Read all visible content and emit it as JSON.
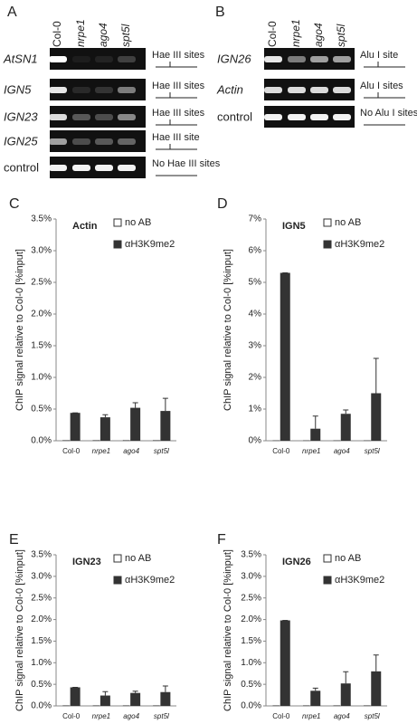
{
  "gels": [
    {
      "panel": "A",
      "lanes": [
        "Col-0",
        "nrpe1",
        "ago4",
        "spt5l"
      ],
      "rows": [
        {
          "name": "AtSN1",
          "note": "Hae III sites"
        },
        {
          "name": "IGN5",
          "note": "Hae III sites"
        },
        {
          "name": "IGN23",
          "note": "Hae III sites"
        },
        {
          "name": "IGN25",
          "note": "Hae III site"
        },
        {
          "name": "control",
          "note": "No Hae III sites"
        }
      ]
    },
    {
      "panel": "B",
      "lanes": [
        "Col-0",
        "nrpe1",
        "ago4",
        "spt5l"
      ],
      "rows": [
        {
          "name": "IGN26",
          "note": "Alu I site"
        },
        {
          "name": "Actin",
          "note": "Alu I sites"
        },
        {
          "name": "control",
          "note": "No Alu I sites"
        }
      ]
    }
  ],
  "chart_data": [
    {
      "type": "bar",
      "panel": "C",
      "title": "Actin",
      "ylabel": "ChIP signal relative to Col-0 [%input]",
      "categories": [
        "Col-0",
        "nrpe1",
        "ago4",
        "spt5l"
      ],
      "series": [
        {
          "name": "no AB",
          "color": "#ffffff",
          "values": [
            0.01,
            0.01,
            0.01,
            0.01
          ]
        },
        {
          "name": "αH3K9me2",
          "color": "#333333",
          "values": [
            0.44,
            0.37,
            0.52,
            0.47
          ],
          "errors": [
            0,
            0.04,
            0.08,
            0.2
          ]
        }
      ],
      "ylim": [
        0,
        3.5
      ],
      "yticks": [
        {
          "value": 0,
          "label": "0.0%"
        },
        {
          "value": 0.5,
          "label": "0.5%"
        },
        {
          "value": 1,
          "label": "1.0%"
        },
        {
          "value": 1.5,
          "label": "1.5%"
        },
        {
          "value": 2,
          "label": "2.0%"
        },
        {
          "value": 2.5,
          "label": "2.5%"
        },
        {
          "value": 3,
          "label": "3.0%"
        },
        {
          "value": 3.5,
          "label": "3.5%"
        }
      ]
    },
    {
      "type": "bar",
      "panel": "D",
      "title": "IGN5",
      "ylabel": "ChIP signal relative to Col-0 [%input]",
      "categories": [
        "Col-0",
        "nrpe1",
        "ago4",
        "spt5l"
      ],
      "series": [
        {
          "name": "no AB",
          "color": "#ffffff",
          "values": [
            0.01,
            0.01,
            0.01,
            0.01
          ]
        },
        {
          "name": "αH3K9me2",
          "color": "#333333",
          "values": [
            5.3,
            0.38,
            0.85,
            1.5
          ],
          "errors": [
            0,
            0.4,
            0.12,
            1.1
          ]
        }
      ],
      "ylim": [
        0,
        7
      ],
      "yticks": [
        {
          "value": 0,
          "label": "0%"
        },
        {
          "value": 1,
          "label": "1%"
        },
        {
          "value": 2,
          "label": "2%"
        },
        {
          "value": 3,
          "label": "3%"
        },
        {
          "value": 4,
          "label": "4%"
        },
        {
          "value": 5,
          "label": "5%"
        },
        {
          "value": 6,
          "label": "6%"
        },
        {
          "value": 7,
          "label": "7%"
        }
      ]
    },
    {
      "type": "bar",
      "panel": "E",
      "title": "IGN23",
      "ylabel": "ChIP signal relative to Col-0 [%input]",
      "categories": [
        "Col-0",
        "nrpe1",
        "ago4",
        "spt5l"
      ],
      "series": [
        {
          "name": "no AB",
          "color": "#ffffff",
          "values": [
            0.01,
            0.01,
            0.01,
            0.01
          ]
        },
        {
          "name": "αH3K9me2",
          "color": "#333333",
          "values": [
            0.43,
            0.24,
            0.3,
            0.32
          ],
          "errors": [
            0,
            0.09,
            0.04,
            0.14
          ]
        }
      ],
      "ylim": [
        0,
        3.5
      ],
      "yticks": [
        {
          "value": 0,
          "label": "0.0%"
        },
        {
          "value": 0.5,
          "label": "0.5%"
        },
        {
          "value": 1,
          "label": "1.0%"
        },
        {
          "value": 1.5,
          "label": "1.5%"
        },
        {
          "value": 2,
          "label": "2.0%"
        },
        {
          "value": 2.5,
          "label": "2.5%"
        },
        {
          "value": 3,
          "label": "3.0%"
        },
        {
          "value": 3.5,
          "label": "3.5%"
        }
      ]
    },
    {
      "type": "bar",
      "panel": "F",
      "title": "IGN26",
      "ylabel": "ChIP signal relative to Col-0 [%input]",
      "categories": [
        "Col-0",
        "nrpe1",
        "ago4",
        "spt5l"
      ],
      "series": [
        {
          "name": "no AB",
          "color": "#ffffff",
          "values": [
            0.01,
            0.01,
            0.01,
            0.01
          ]
        },
        {
          "name": "αH3K9me2",
          "color": "#333333",
          "values": [
            1.98,
            0.35,
            0.52,
            0.8
          ],
          "errors": [
            0,
            0.06,
            0.27,
            0.38
          ]
        }
      ],
      "ylim": [
        0,
        3.5
      ],
      "yticks": [
        {
          "value": 0,
          "label": "0.0%"
        },
        {
          "value": 0.5,
          "label": "0.5%"
        },
        {
          "value": 1,
          "label": "1.0%"
        },
        {
          "value": 1.5,
          "label": "1.5%"
        },
        {
          "value": 2,
          "label": "2.0%"
        },
        {
          "value": 2.5,
          "label": "2.5%"
        },
        {
          "value": 3,
          "label": "3.0%"
        },
        {
          "value": 3.5,
          "label": "3.5%"
        }
      ]
    }
  ]
}
